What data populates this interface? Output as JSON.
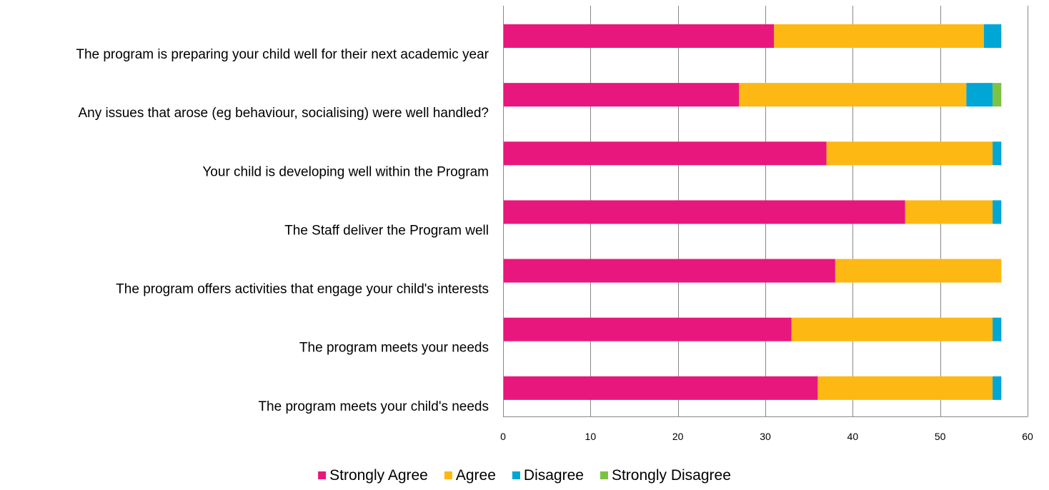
{
  "chart_data": {
    "type": "bar",
    "orientation": "horizontal",
    "stacked": true,
    "categories": [
      "The program is preparing your child well for their next academic year",
      "Any issues that arose (eg behaviour, socialising) were well handled?",
      "Your child is developing well within the Program",
      "The Staff deliver the Program well",
      "The program offers activities that engage your child's interests",
      "The program meets your needs",
      "The program meets your child's needs"
    ],
    "series": [
      {
        "name": "Strongly Agree",
        "color": "#E8177D",
        "values": [
          31,
          27,
          37,
          46,
          38,
          33,
          36
        ]
      },
      {
        "name": "Agree",
        "color": "#FDB813",
        "values": [
          24,
          26,
          19,
          10,
          19,
          23,
          20
        ]
      },
      {
        "name": "Disagree",
        "color": "#00A6D6",
        "values": [
          2,
          3,
          1,
          1,
          0,
          1,
          1
        ]
      },
      {
        "name": "Strongly Disagree",
        "color": "#7DC242",
        "values": [
          0,
          1,
          0,
          0,
          0,
          0,
          0
        ]
      }
    ],
    "xlim": [
      0,
      60
    ],
    "xticks": [
      "0",
      "10",
      "20",
      "30",
      "40",
      "50",
      "60"
    ],
    "grid": true,
    "legend_position": "bottom",
    "gridline_color": "#888888",
    "axis_color": "#888888"
  }
}
